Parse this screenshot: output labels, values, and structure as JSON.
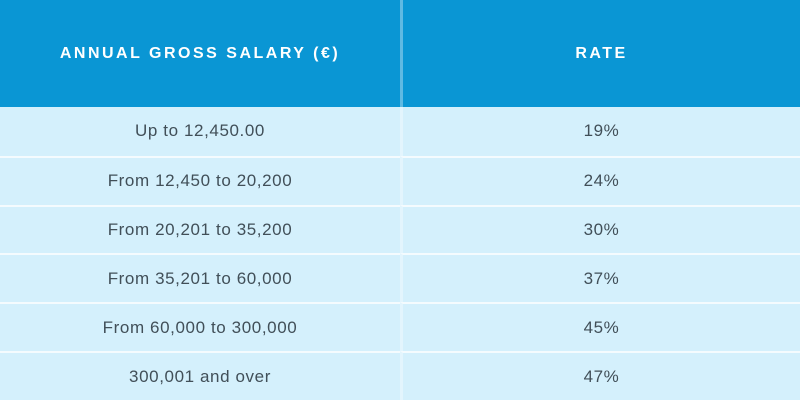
{
  "chart_data": {
    "type": "table",
    "columns": [
      "ANNUAL GROSS SALARY (€)",
      "RATE"
    ],
    "rows": [
      [
        "Up to 12,450.00",
        "19%"
      ],
      [
        "From 12,450 to 20,200",
        "24%"
      ],
      [
        "From 20,201 to 35,200",
        "30%"
      ],
      [
        "From 35,201 to 60,000",
        "37%"
      ],
      [
        "From 60,000 to 300,000",
        "45%"
      ],
      [
        "300,001 and over",
        "47%"
      ]
    ]
  },
  "colors": {
    "header_bg": "#0A96D4",
    "header_text": "#FFFFFF",
    "row_bg": "#D4F0FC",
    "body_text": "#414F58",
    "divider": "rgba(255,255,255,0.5)"
  }
}
